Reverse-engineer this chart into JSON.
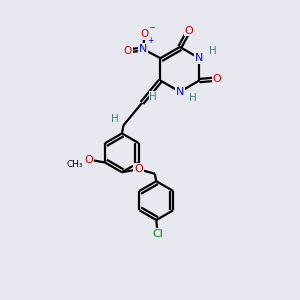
{
  "bg_color": "#e8e8f0",
  "atom_colors": {
    "C": "#000000",
    "N": "#0000cc",
    "O": "#cc0000",
    "H": "#408080",
    "Cl": "#008800"
  },
  "bond_color": "#000000",
  "bond_width": 1.6,
  "dbo": 0.055
}
